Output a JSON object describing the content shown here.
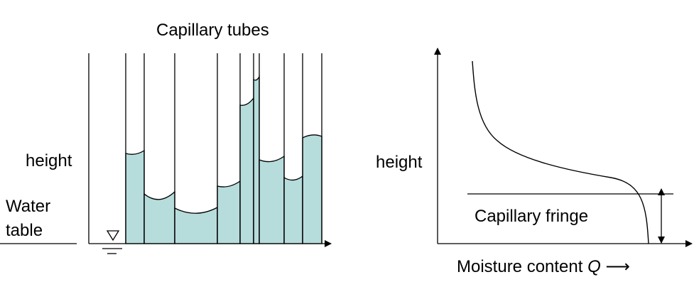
{
  "left_diagram": {
    "title": "Capillary tubes",
    "y_label": "height",
    "water_table_label_line1": "Water",
    "water_table_label_line2": "table"
  },
  "right_diagram": {
    "y_label": "height",
    "band_label": "Capillary fringe",
    "x_label_main": "Moisture content",
    "x_label_symbol": "Q",
    "x_label_arrow": "⟶"
  },
  "colors": {
    "water": "#b7dcdc",
    "lines": "#000000"
  },
  "icons": [
    "water-table-triangle-icon",
    "axis-arrow-icon",
    "double-headed-arrow-icon"
  ]
}
